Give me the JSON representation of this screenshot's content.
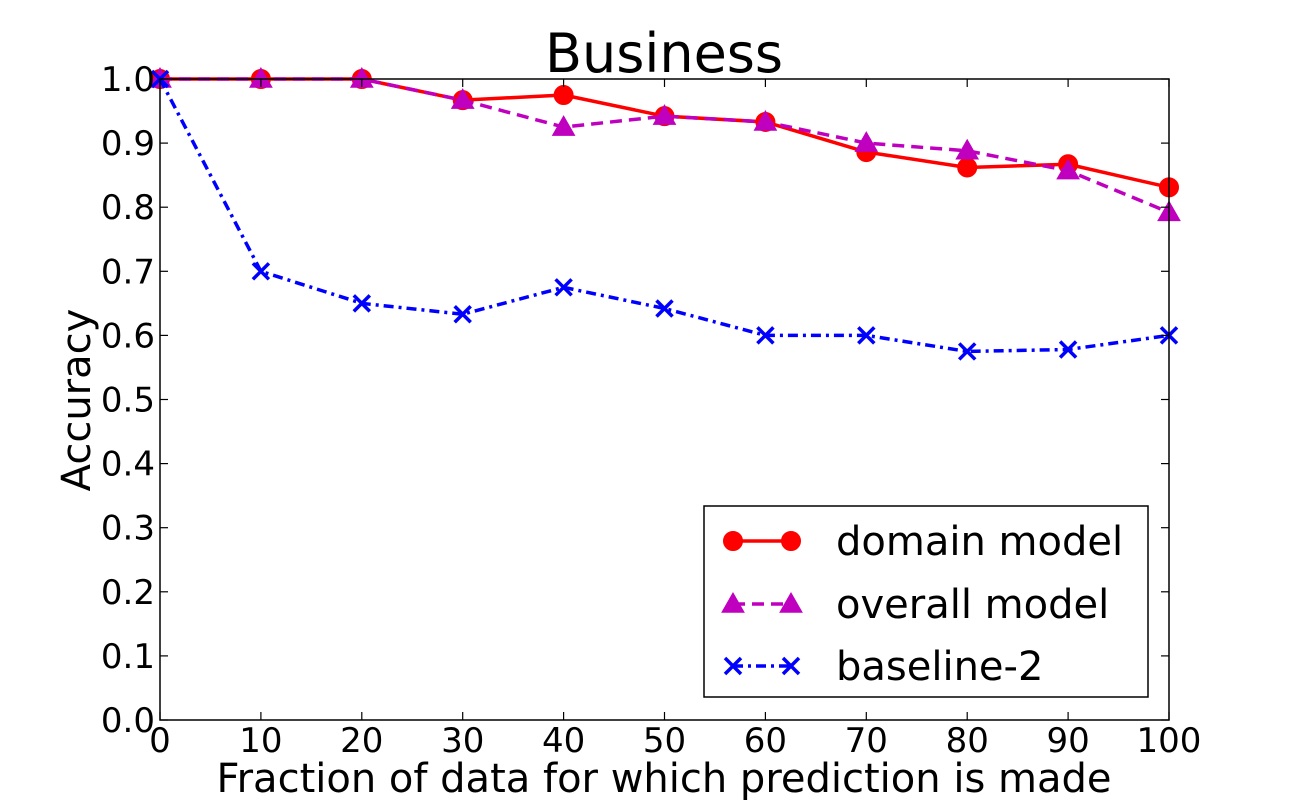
{
  "chart_data": {
    "type": "line",
    "title": "Business",
    "xlabel": "Fraction of data for which prediction is made",
    "ylabel": "Accuracy",
    "xlim": [
      0,
      100
    ],
    "ylim": [
      0.0,
      1.0
    ],
    "xticks": [
      0,
      10,
      20,
      30,
      40,
      50,
      60,
      70,
      80,
      90,
      100
    ],
    "xtick_labels": [
      "0",
      "10",
      "20",
      "30",
      "40",
      "50",
      "60",
      "70",
      "80",
      "90",
      "100"
    ],
    "yticks": [
      0.0,
      0.1,
      0.2,
      0.3,
      0.4,
      0.5,
      0.6,
      0.7,
      0.8,
      0.9,
      1.0
    ],
    "ytick_labels": [
      "0.0",
      "0.1",
      "0.2",
      "0.3",
      "0.4",
      "0.5",
      "0.6",
      "0.7",
      "0.8",
      "0.9",
      "1.0"
    ],
    "grid": false,
    "legend_position": "lower-right",
    "x": [
      0,
      10,
      20,
      30,
      40,
      50,
      60,
      70,
      80,
      90,
      100
    ],
    "series": [
      {
        "name": "domain model",
        "values": [
          1.0,
          1.0,
          1.0,
          0.967,
          0.975,
          0.942,
          0.933,
          0.886,
          0.862,
          0.867,
          0.831
        ],
        "color": "#ff0000",
        "marker": "circle",
        "line_style": "solid"
      },
      {
        "name": "overall model",
        "values": [
          1.0,
          1.0,
          1.0,
          0.967,
          0.925,
          0.942,
          0.933,
          0.9,
          0.888,
          0.857,
          0.792
        ],
        "color": "#bf00bf",
        "marker": "triangle",
        "line_style": "dashed"
      },
      {
        "name": "baseline-2",
        "values": [
          1.0,
          0.7,
          0.65,
          0.633,
          0.675,
          0.642,
          0.6,
          0.6,
          0.575,
          0.578,
          0.6
        ],
        "color": "#0000ff",
        "marker": "x",
        "line_style": "dashdot"
      }
    ]
  }
}
